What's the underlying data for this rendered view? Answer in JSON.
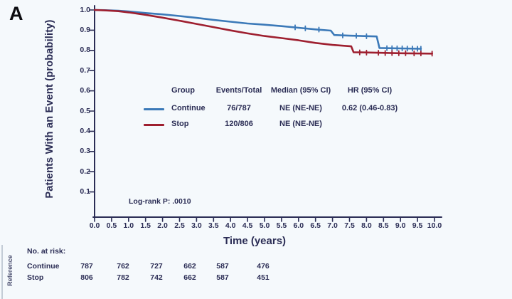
{
  "panel_label": "A",
  "chart_data": {
    "type": "line",
    "subtype": "kaplan-meier",
    "title": "",
    "xlabel": "Time (years)",
    "ylabel": "Patients With an Event (probability)",
    "xlim": [
      0,
      10
    ],
    "ylim": [
      0,
      1.0
    ],
    "grid": false,
    "axis_color": "#2b2d55",
    "x_ticks": [
      "0.0",
      "0.5",
      "1.0",
      "1.5",
      "2.0",
      "2.5",
      "3.0",
      "3.5",
      "4.0",
      "4.5",
      "5.0",
      "5.5",
      "6.0",
      "6.5",
      "7.0",
      "7.5",
      "8.0",
      "8.5",
      "9.0",
      "9.5",
      "10.0"
    ],
    "y_ticks": [
      "1.0",
      "0.9",
      "0.8",
      "0.7",
      "0.6",
      "0.5",
      "0.4",
      "0.3",
      "0.2",
      "0.1"
    ],
    "series": [
      {
        "name": "Continue",
        "color": "#3b79b8",
        "points": [
          [
            0,
            1.0
          ],
          [
            0.3,
            0.999
          ],
          [
            0.7,
            0.996
          ],
          [
            1.0,
            0.993
          ],
          [
            1.5,
            0.985
          ],
          [
            2.0,
            0.978
          ],
          [
            2.5,
            0.97
          ],
          [
            3.0,
            0.961
          ],
          [
            3.5,
            0.951
          ],
          [
            4.0,
            0.942
          ],
          [
            4.5,
            0.933
          ],
          [
            5.0,
            0.927
          ],
          [
            5.5,
            0.92
          ],
          [
            6.0,
            0.912
          ],
          [
            6.5,
            0.904
          ],
          [
            6.95,
            0.898
          ],
          [
            7.05,
            0.876
          ],
          [
            7.5,
            0.873
          ],
          [
            8.3,
            0.869
          ],
          [
            8.38,
            0.812
          ],
          [
            9.0,
            0.81
          ],
          [
            9.6,
            0.808
          ]
        ],
        "censor_marks": [
          [
            5.9,
            0.914
          ],
          [
            6.2,
            0.909
          ],
          [
            6.6,
            0.903
          ],
          [
            7.3,
            0.874
          ],
          [
            7.7,
            0.872
          ],
          [
            8.0,
            0.87
          ],
          [
            8.6,
            0.811
          ],
          [
            8.75,
            0.811
          ],
          [
            8.9,
            0.81
          ],
          [
            9.05,
            0.81
          ],
          [
            9.2,
            0.809
          ],
          [
            9.35,
            0.809
          ],
          [
            9.5,
            0.808
          ],
          [
            9.6,
            0.808
          ]
        ]
      },
      {
        "name": "Stop",
        "color": "#9e1f2f",
        "points": [
          [
            0,
            1.0
          ],
          [
            0.3,
            0.998
          ],
          [
            0.7,
            0.994
          ],
          [
            1.0,
            0.988
          ],
          [
            1.5,
            0.976
          ],
          [
            2.0,
            0.962
          ],
          [
            2.5,
            0.947
          ],
          [
            3.0,
            0.931
          ],
          [
            3.5,
            0.915
          ],
          [
            4.0,
            0.899
          ],
          [
            4.5,
            0.884
          ],
          [
            5.0,
            0.871
          ],
          [
            5.5,
            0.861
          ],
          [
            6.0,
            0.85
          ],
          [
            6.5,
            0.837
          ],
          [
            7.0,
            0.827
          ],
          [
            7.55,
            0.82
          ],
          [
            7.62,
            0.791
          ],
          [
            8.2,
            0.789
          ],
          [
            9.0,
            0.786
          ],
          [
            9.93,
            0.784
          ]
        ],
        "censor_marks": [
          [
            7.8,
            0.79
          ],
          [
            8.0,
            0.789
          ],
          [
            8.35,
            0.788
          ],
          [
            8.55,
            0.787
          ],
          [
            8.75,
            0.787
          ],
          [
            8.95,
            0.786
          ],
          [
            9.15,
            0.786
          ],
          [
            9.4,
            0.785
          ],
          [
            9.6,
            0.785
          ],
          [
            9.93,
            0.784
          ]
        ]
      }
    ],
    "legend": {
      "headers": {
        "group": "Group",
        "events": "Events/Total",
        "median": "Median (95% CI)",
        "hr": "HR (95% CI)"
      },
      "rows": [
        {
          "group": "Continue",
          "events": "76/787",
          "median": "NE (NE-NE)",
          "hr": "0.62 (0.46-0.83)"
        },
        {
          "group": "Stop",
          "events": "120/806",
          "median": "NE (NE-NE)",
          "hr": ""
        }
      ]
    },
    "annotations": {
      "log_rank": "Log-rank P: .0010"
    }
  },
  "risk_table": {
    "title": "No. at risk:",
    "rows": [
      {
        "label": "Continue",
        "values": [
          "787",
          "762",
          "727",
          "662",
          "587",
          "476"
        ]
      },
      {
        "label": "Stop",
        "values": [
          "806",
          "782",
          "742",
          "662",
          "587",
          "451"
        ]
      }
    ]
  },
  "side_note": "Reference"
}
